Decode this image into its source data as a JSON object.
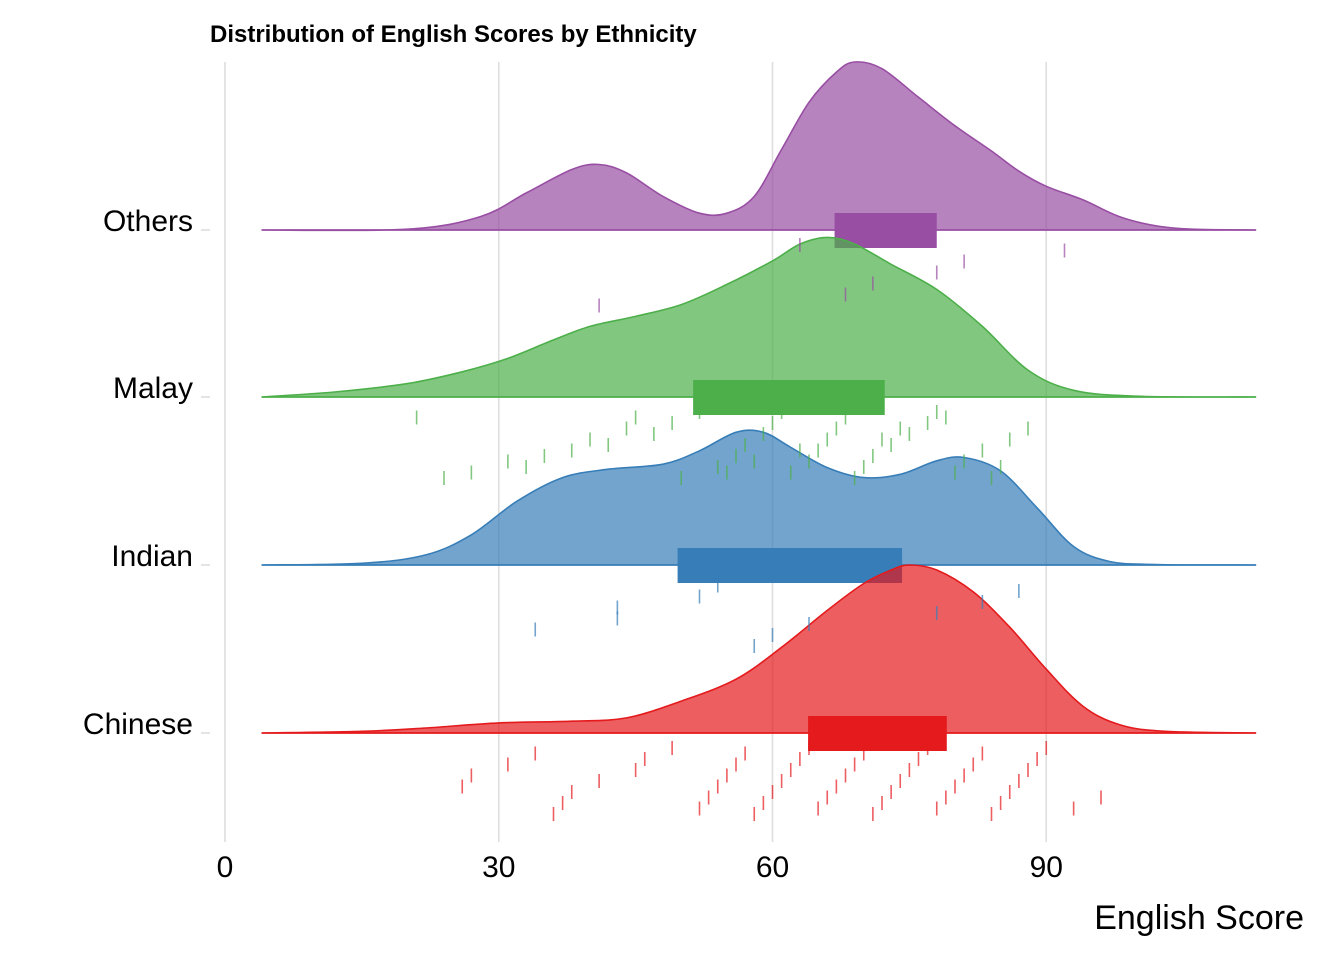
{
  "chart_data": {
    "type": "raincloud",
    "title": "Distribution of English Scores by Ethnicity",
    "xlabel": "English Score",
    "ylabel": "",
    "xlim": [
      -2,
      113
    ],
    "x_ticks": [
      0,
      30,
      60,
      90
    ],
    "grid": true,
    "legend": "none",
    "series": [
      {
        "name": "Others",
        "color": "#984EA3",
        "density": [
          [
            4,
            0
          ],
          [
            20,
            0.005
          ],
          [
            28,
            0.08
          ],
          [
            33,
            0.22
          ],
          [
            38,
            0.36
          ],
          [
            41,
            0.39
          ],
          [
            44,
            0.34
          ],
          [
            48,
            0.2
          ],
          [
            52,
            0.1
          ],
          [
            55,
            0.1
          ],
          [
            58,
            0.2
          ],
          [
            61,
            0.48
          ],
          [
            64,
            0.76
          ],
          [
            67,
            0.94
          ],
          [
            69,
            1.0
          ],
          [
            72,
            0.96
          ],
          [
            76,
            0.79
          ],
          [
            80,
            0.62
          ],
          [
            84,
            0.47
          ],
          [
            87,
            0.35
          ],
          [
            90,
            0.26
          ],
          [
            94,
            0.18
          ],
          [
            98,
            0.08
          ],
          [
            102,
            0.025
          ],
          [
            106,
            0.005
          ],
          [
            113,
            0
          ]
        ],
        "iqr": [
          66.8,
          78
        ],
        "points": [
          63,
          41,
          68,
          71,
          78,
          81,
          92
        ]
      },
      {
        "name": "Malay",
        "color": "#4DAF4A",
        "density": [
          [
            4,
            0
          ],
          [
            12,
            0.03
          ],
          [
            20,
            0.08
          ],
          [
            26,
            0.15
          ],
          [
            31,
            0.23
          ],
          [
            36,
            0.34
          ],
          [
            40,
            0.42
          ],
          [
            45,
            0.48
          ],
          [
            50,
            0.55
          ],
          [
            55,
            0.67
          ],
          [
            60,
            0.81
          ],
          [
            63,
            0.91
          ],
          [
            66,
            0.95
          ],
          [
            69,
            0.91
          ],
          [
            73,
            0.79
          ],
          [
            78,
            0.64
          ],
          [
            83,
            0.42
          ],
          [
            88,
            0.16
          ],
          [
            93,
            0.04
          ],
          [
            100,
            0.005
          ],
          [
            113,
            0
          ]
        ],
        "iqr": [
          51.3,
          72.3
        ],
        "points": [
          27,
          31,
          38,
          40,
          44,
          45,
          50,
          54,
          56,
          57,
          59,
          60,
          61,
          62,
          64,
          65,
          66,
          67,
          68,
          69,
          70,
          71,
          73,
          75,
          77,
          78,
          80,
          81,
          83,
          86,
          88,
          21,
          24,
          33,
          35,
          42,
          47,
          49,
          52,
          55,
          58,
          63,
          72,
          74,
          79,
          84,
          85
        ]
      },
      {
        "name": "Indian",
        "color": "#377EB8",
        "density": [
          [
            4,
            0
          ],
          [
            15,
            0.01
          ],
          [
            22,
            0.06
          ],
          [
            27,
            0.18
          ],
          [
            32,
            0.38
          ],
          [
            37,
            0.52
          ],
          [
            42,
            0.57
          ],
          [
            48,
            0.6
          ],
          [
            52,
            0.68
          ],
          [
            56,
            0.79
          ],
          [
            59,
            0.79
          ],
          [
            62,
            0.7
          ],
          [
            66,
            0.58
          ],
          [
            70,
            0.52
          ],
          [
            74,
            0.54
          ],
          [
            78,
            0.62
          ],
          [
            81,
            0.64
          ],
          [
            85,
            0.56
          ],
          [
            89,
            0.34
          ],
          [
            93,
            0.11
          ],
          [
            97,
            0.02
          ],
          [
            102,
            0.003
          ],
          [
            113,
            0
          ]
        ],
        "iqr": [
          49.6,
          74.2
        ],
        "points": [
          34,
          43,
          43,
          52,
          54,
          58,
          60,
          64,
          78,
          83,
          87
        ]
      },
      {
        "name": "Chinese",
        "color": "#E41A1C",
        "density": [
          [
            4,
            0
          ],
          [
            15,
            0.01
          ],
          [
            22,
            0.03
          ],
          [
            30,
            0.06
          ],
          [
            38,
            0.07
          ],
          [
            44,
            0.09
          ],
          [
            50,
            0.19
          ],
          [
            56,
            0.32
          ],
          [
            61,
            0.51
          ],
          [
            66,
            0.73
          ],
          [
            70,
            0.89
          ],
          [
            73,
            0.97
          ],
          [
            75,
            1.0
          ],
          [
            78,
            0.97
          ],
          [
            82,
            0.84
          ],
          [
            86,
            0.63
          ],
          [
            90,
            0.38
          ],
          [
            94,
            0.16
          ],
          [
            98,
            0.05
          ],
          [
            103,
            0.01
          ],
          [
            113,
            0
          ]
        ],
        "iqr": [
          63.9,
          79.1
        ],
        "points": [
          26,
          27,
          31,
          34,
          36,
          37,
          38,
          41,
          45,
          46,
          49,
          52,
          53,
          54,
          55,
          56,
          57,
          58,
          59,
          60,
          61,
          62,
          63,
          64,
          65,
          66,
          67,
          68,
          69,
          70,
          71,
          72,
          73,
          74,
          75,
          76,
          77,
          78,
          79,
          80,
          81,
          82,
          83,
          84,
          85,
          86,
          87,
          88,
          89,
          90,
          93,
          96
        ]
      }
    ]
  }
}
